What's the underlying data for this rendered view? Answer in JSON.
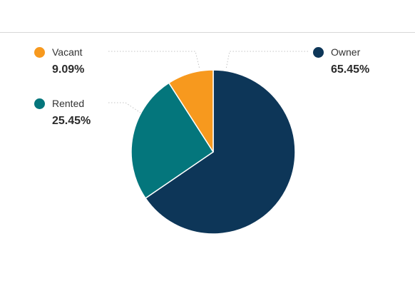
{
  "chart_data": {
    "type": "pie",
    "slices": [
      {
        "label": "Owner",
        "value": 65.45,
        "display": "65.45%",
        "color": "#0d3658"
      },
      {
        "label": "Rented",
        "value": 25.45,
        "display": "25.45%",
        "color": "#04767c"
      },
      {
        "label": "Vacant",
        "value": 9.09,
        "display": "9.09%",
        "color": "#f7991e"
      }
    ],
    "legend": "around"
  }
}
